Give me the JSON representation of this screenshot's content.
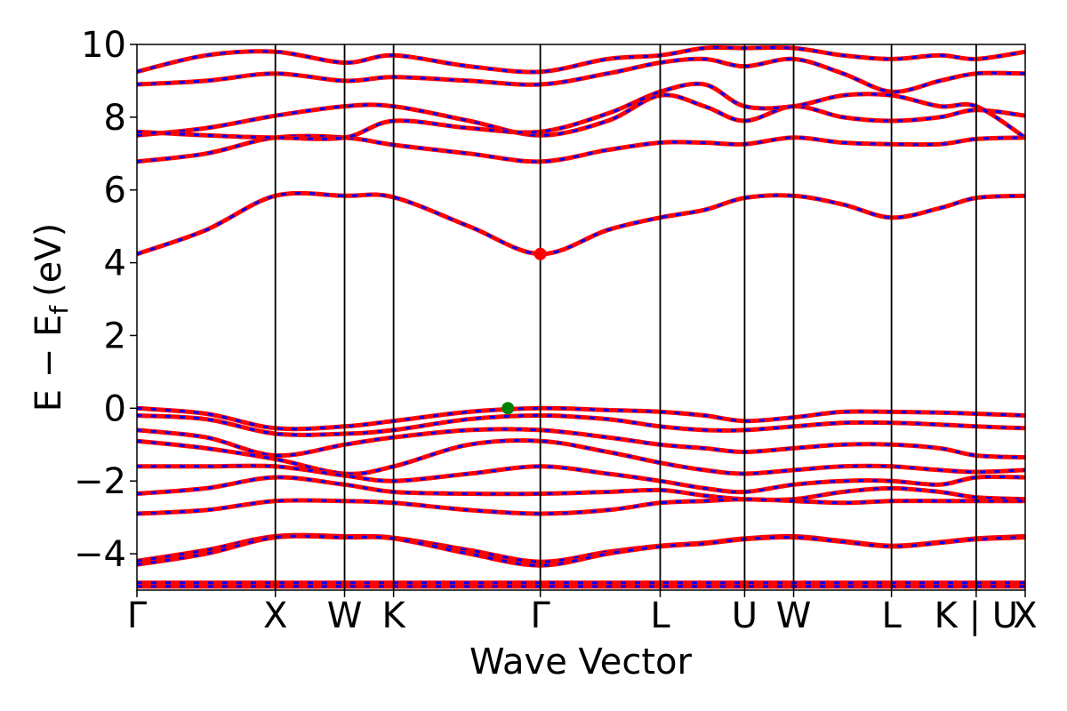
{
  "chart_data": {
    "type": "line",
    "xlabel": "Wave Vector",
    "ylabel": "E − E",
    "ylabel_subscript": "f",
    "ylabel_unit": "(eV)",
    "ylim": [
      -5,
      10
    ],
    "yticks": [
      -4,
      -2,
      0,
      2,
      4,
      6,
      8,
      10
    ],
    "ytick_labels": [
      "−4",
      "−2",
      "0",
      "2",
      "4",
      "6",
      "8",
      "10"
    ],
    "grid": false,
    "legend": "none",
    "colors": {
      "band_primary": "#ff0000",
      "band_overlay": "#0000ff",
      "cbm_marker": "#ff0000",
      "vbm_marker": "#008000",
      "kpoint_lines": "#000000"
    },
    "kpath": [
      {
        "label": "Γ",
        "x": 0.0
      },
      {
        "label": "X",
        "x": 1.0
      },
      {
        "label": "W",
        "x": 1.5
      },
      {
        "label": "K",
        "x": 1.854
      },
      {
        "label": "Γ",
        "x": 2.914
      },
      {
        "label": "L",
        "x": 3.78
      },
      {
        "label": "U",
        "x": 4.39
      },
      {
        "label": "W",
        "x": 4.744
      },
      {
        "label": "L",
        "x": 5.451
      },
      {
        "label": "K | U",
        "x": 6.063
      },
      {
        "label": "X",
        "x": 6.417
      }
    ],
    "xlim": [
      0,
      6.417
    ],
    "markers": [
      {
        "name": "CBM",
        "x": 2.914,
        "y": 4.24
      },
      {
        "name": "VBM",
        "x": 2.68,
        "y": 0.0
      }
    ],
    "series": [
      {
        "x": [
          0,
          0.5,
          1.0,
          1.5,
          1.854,
          2.4,
          2.914,
          3.4,
          3.78,
          4.1,
          4.39,
          4.744,
          5.1,
          5.451,
          5.8,
          6.063,
          6.417
        ],
        "values": [
          4.24,
          4.9,
          5.84,
          5.84,
          5.8,
          5.0,
          4.24,
          4.9,
          5.24,
          5.45,
          5.78,
          5.84,
          5.6,
          5.24,
          5.5,
          5.78,
          5.84
        ]
      },
      {
        "x": [
          0,
          0.5,
          1.0,
          1.5,
          1.854,
          2.4,
          2.914,
          3.4,
          3.78,
          4.1,
          4.39,
          4.744,
          5.1,
          5.451,
          5.8,
          6.063,
          6.417
        ],
        "values": [
          6.78,
          7.0,
          7.44,
          7.44,
          7.24,
          7.0,
          6.78,
          7.1,
          7.3,
          7.3,
          7.26,
          7.44,
          7.3,
          7.26,
          7.26,
          7.4,
          7.44
        ]
      },
      {
        "x": [
          0,
          0.5,
          1.0,
          1.5,
          1.854,
          2.4,
          2.914,
          3.4,
          3.78,
          4.1,
          4.39,
          4.744,
          5.1,
          5.451,
          5.8,
          6.063,
          6.417
        ],
        "values": [
          7.5,
          7.7,
          8.04,
          8.3,
          8.3,
          7.9,
          7.5,
          7.9,
          8.6,
          8.3,
          7.9,
          8.3,
          8.0,
          7.9,
          8.0,
          8.2,
          8.04
        ]
      },
      {
        "x": [
          0,
          0.5,
          1.0,
          1.5,
          1.854,
          2.4,
          2.914,
          3.4,
          3.78,
          4.1,
          4.39,
          4.744,
          5.1,
          5.451,
          5.8,
          6.063,
          6.417
        ],
        "values": [
          7.6,
          7.5,
          7.44,
          7.44,
          7.9,
          7.7,
          7.6,
          8.1,
          8.7,
          8.9,
          8.3,
          8.3,
          8.6,
          8.6,
          8.3,
          8.3,
          7.44
        ]
      },
      {
        "x": [
          0,
          0.5,
          1.0,
          1.5,
          1.854,
          2.4,
          2.914,
          3.4,
          3.78,
          4.1,
          4.39,
          4.744,
          5.1,
          5.451,
          5.8,
          6.063,
          6.417
        ],
        "values": [
          8.9,
          9.0,
          9.2,
          9.0,
          9.1,
          9.0,
          8.9,
          9.2,
          9.5,
          9.6,
          9.4,
          9.6,
          9.2,
          8.7,
          9.0,
          9.2,
          9.2
        ]
      },
      {
        "x": [
          0,
          0.5,
          1.0,
          1.5,
          1.854,
          2.4,
          2.914,
          3.4,
          3.78,
          4.1,
          4.39,
          4.744,
          5.1,
          5.451,
          5.8,
          6.063,
          6.417
        ],
        "values": [
          9.25,
          9.7,
          9.8,
          9.5,
          9.7,
          9.4,
          9.25,
          9.6,
          9.7,
          9.9,
          9.9,
          9.9,
          9.7,
          9.6,
          9.7,
          9.6,
          9.8
        ]
      },
      {
        "x": [
          0,
          0.5,
          1.0,
          1.5,
          1.854,
          2.4,
          2.914,
          3.4,
          3.78,
          4.1,
          4.39,
          4.744,
          5.1,
          5.451,
          5.8,
          6.063,
          6.417
        ],
        "values": [
          0.0,
          -0.15,
          -0.55,
          -0.5,
          -0.35,
          -0.1,
          0.0,
          -0.05,
          -0.1,
          -0.2,
          -0.35,
          -0.25,
          -0.1,
          -0.1,
          -0.12,
          -0.15,
          -0.2
        ]
      },
      {
        "x": [
          0,
          0.5,
          1.0,
          1.5,
          1.854,
          2.4,
          2.914,
          3.4,
          3.78,
          4.1,
          4.39,
          4.744,
          5.1,
          5.451,
          5.8,
          6.063,
          6.417
        ],
        "values": [
          -0.2,
          -0.3,
          -0.7,
          -0.7,
          -0.6,
          -0.3,
          -0.2,
          -0.3,
          -0.5,
          -0.6,
          -0.6,
          -0.5,
          -0.4,
          -0.4,
          -0.45,
          -0.5,
          -0.55
        ]
      },
      {
        "x": [
          0,
          0.5,
          1.0,
          1.5,
          1.854,
          2.4,
          2.914,
          3.4,
          3.78,
          4.1,
          4.39,
          4.744,
          5.1,
          5.451,
          5.8,
          6.063,
          6.417
        ],
        "values": [
          -0.6,
          -0.8,
          -1.3,
          -1.0,
          -0.8,
          -0.6,
          -0.6,
          -0.8,
          -1.0,
          -1.1,
          -1.2,
          -1.1,
          -1.0,
          -1.0,
          -1.1,
          -1.3,
          -1.35
        ]
      },
      {
        "x": [
          0,
          0.5,
          1.0,
          1.5,
          1.854,
          2.4,
          2.914,
          3.4,
          3.78,
          4.1,
          4.39,
          4.744,
          5.1,
          5.451,
          5.8,
          6.063,
          6.417
        ],
        "values": [
          -0.9,
          -1.1,
          -1.4,
          -1.8,
          -1.6,
          -1.0,
          -0.9,
          -1.2,
          -1.5,
          -1.7,
          -1.8,
          -1.7,
          -1.6,
          -1.6,
          -1.7,
          -1.75,
          -1.7
        ]
      },
      {
        "x": [
          0,
          0.5,
          1.0,
          1.5,
          1.854,
          2.4,
          2.914,
          3.4,
          3.78,
          4.1,
          4.39,
          4.744,
          5.1,
          5.451,
          5.8,
          6.063,
          6.417
        ],
        "values": [
          -1.6,
          -1.6,
          -1.6,
          -1.85,
          -2.0,
          -1.8,
          -1.6,
          -1.8,
          -2.0,
          -2.2,
          -2.3,
          -2.1,
          -2.0,
          -2.0,
          -2.1,
          -1.9,
          -1.9
        ]
      },
      {
        "x": [
          0,
          0.5,
          1.0,
          1.5,
          1.854,
          2.4,
          2.914,
          3.4,
          3.78,
          4.1,
          4.39,
          4.744,
          5.1,
          5.451,
          5.8,
          6.063,
          6.417
        ],
        "values": [
          -2.35,
          -2.2,
          -1.9,
          -2.1,
          -2.3,
          -2.35,
          -2.35,
          -2.3,
          -2.25,
          -2.4,
          -2.5,
          -2.5,
          -2.3,
          -2.2,
          -2.3,
          -2.45,
          -2.5
        ]
      },
      {
        "x": [
          0,
          0.5,
          1.0,
          1.5,
          1.854,
          2.4,
          2.914,
          3.4,
          3.78,
          4.1,
          4.39,
          4.744,
          5.1,
          5.451,
          5.8,
          6.063,
          6.417
        ],
        "values": [
          -2.9,
          -2.8,
          -2.55,
          -2.55,
          -2.6,
          -2.8,
          -2.9,
          -2.8,
          -2.6,
          -2.55,
          -2.5,
          -2.55,
          -2.6,
          -2.55,
          -2.55,
          -2.55,
          -2.55
        ]
      },
      {
        "x": [
          0,
          0.5,
          1.0,
          1.5,
          1.854,
          2.4,
          2.914,
          3.4,
          3.78,
          4.1,
          4.39,
          4.744,
          5.1,
          5.451,
          5.8,
          6.063,
          6.417
        ],
        "values": [
          -4.2,
          -3.9,
          -3.52,
          -3.52,
          -3.56,
          -3.9,
          -4.22,
          -3.95,
          -3.78,
          -3.7,
          -3.58,
          -3.52,
          -3.65,
          -3.78,
          -3.68,
          -3.58,
          -3.52
        ]
      },
      {
        "x": [
          0,
          0.5,
          1.0,
          1.5,
          1.854,
          2.4,
          2.914,
          3.4,
          3.78,
          4.1,
          4.39,
          4.744,
          5.1,
          5.451,
          5.8,
          6.063,
          6.417
        ],
        "values": [
          -4.3,
          -4.0,
          -3.55,
          -3.55,
          -3.58,
          -4.0,
          -4.32,
          -4.0,
          -3.8,
          -3.72,
          -3.6,
          -3.55,
          -3.67,
          -3.8,
          -3.7,
          -3.6,
          -3.55
        ]
      },
      {
        "x": [
          0,
          6.417
        ],
        "values": [
          -4.8,
          -4.8
        ]
      },
      {
        "x": [
          0,
          6.417
        ],
        "values": [
          -4.9,
          -4.9
        ]
      }
    ]
  }
}
